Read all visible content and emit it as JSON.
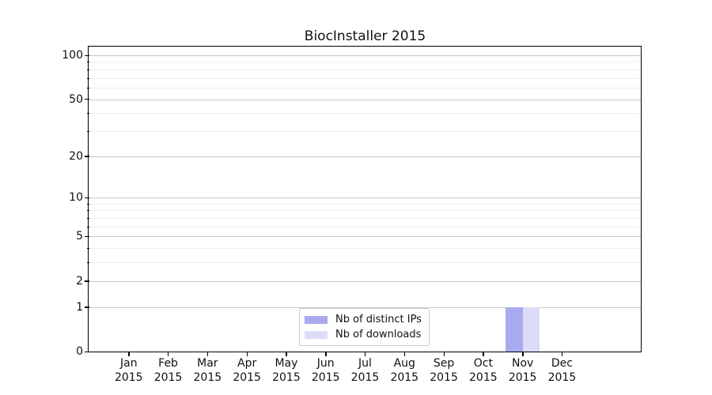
{
  "chart_data": {
    "type": "bar",
    "title": "BiocInstaller 2015",
    "categories": [
      "Jan 2015",
      "Feb 2015",
      "Mar 2015",
      "Apr 2015",
      "May 2015",
      "Jun 2015",
      "Jul 2015",
      "Aug 2015",
      "Sep 2015",
      "Oct 2015",
      "Nov 2015",
      "Dec 2015"
    ],
    "series": [
      {
        "name": "Nb of distinct IPs",
        "color": "#aaaaef",
        "values": [
          0,
          0,
          0,
          0,
          0,
          0,
          0,
          0,
          0,
          0,
          1,
          0
        ]
      },
      {
        "name": "Nb of downloads",
        "color": "#dcdcf8",
        "values": [
          0,
          0,
          0,
          0,
          0,
          0,
          0,
          0,
          0,
          0,
          1,
          0
        ]
      }
    ],
    "xlabel": "",
    "ylabel": "",
    "yscale": "log1p",
    "yticks": [
      0,
      1,
      2,
      5,
      10,
      20,
      50,
      100
    ],
    "yticks_minor": [
      3,
      4,
      6,
      7,
      8,
      9,
      30,
      40,
      60,
      70,
      80,
      90
    ],
    "ylim": [
      0,
      113
    ],
    "grid": true,
    "legend": {
      "position": "lower center",
      "entries": [
        "Nb of distinct IPs",
        "Nb of downloads"
      ]
    }
  },
  "colors": {
    "major_grid": "#c6c6c6",
    "minor_grid": "#ededed",
    "spine": "#000000",
    "background": "#ffffff",
    "text": "#111111"
  }
}
